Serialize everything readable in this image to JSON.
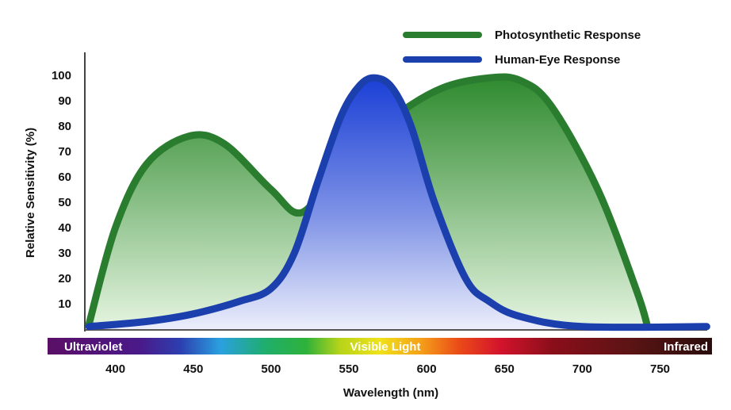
{
  "chart_data": {
    "type": "area",
    "xlabel": "Wavelength (nm)",
    "ylabel": "Relative Sensitivity (%)",
    "xlim": [
      380,
      780
    ],
    "ylim": [
      0,
      100
    ],
    "x_ticks": [
      400,
      450,
      500,
      550,
      600,
      650,
      700,
      750
    ],
    "y_ticks": [
      10,
      20,
      30,
      40,
      50,
      60,
      70,
      80,
      90,
      100
    ],
    "grid": false,
    "legend_position": "top-right",
    "series": [
      {
        "name": "Photosynthetic Response",
        "color": "#2a7d2e",
        "points": [
          [
            383,
            2
          ],
          [
            400,
            40
          ],
          [
            420,
            65
          ],
          [
            447,
            76
          ],
          [
            470,
            73
          ],
          [
            500,
            55
          ],
          [
            520,
            46
          ],
          [
            545,
            65
          ],
          [
            580,
            84
          ],
          [
            610,
            95
          ],
          [
            640,
            99
          ],
          [
            660,
            98
          ],
          [
            680,
            88
          ],
          [
            710,
            55
          ],
          [
            735,
            15
          ],
          [
            742,
            1
          ]
        ]
      },
      {
        "name": "Human-Eye Response",
        "color": "#1c3fae",
        "points": [
          [
            383,
            1
          ],
          [
            420,
            3
          ],
          [
            450,
            6
          ],
          [
            480,
            11
          ],
          [
            500,
            16
          ],
          [
            515,
            30
          ],
          [
            530,
            58
          ],
          [
            545,
            84
          ],
          [
            557,
            96
          ],
          [
            567,
            99
          ],
          [
            578,
            95
          ],
          [
            590,
            80
          ],
          [
            605,
            50
          ],
          [
            625,
            20
          ],
          [
            640,
            11
          ],
          [
            660,
            5
          ],
          [
            700,
            1
          ],
          [
            780,
            1
          ]
        ]
      }
    ],
    "spectrum_band": {
      "labels": {
        "left": "Ultraviolet",
        "center": "Visible Light",
        "right": "Infrared"
      }
    },
    "colors": {
      "photo_fill_top": "#2e8a2e",
      "photo_fill_bottom": "#e6f5e1",
      "eye_fill_top": "#1a3fd6",
      "eye_fill_bottom": "#e6e8fb"
    }
  }
}
